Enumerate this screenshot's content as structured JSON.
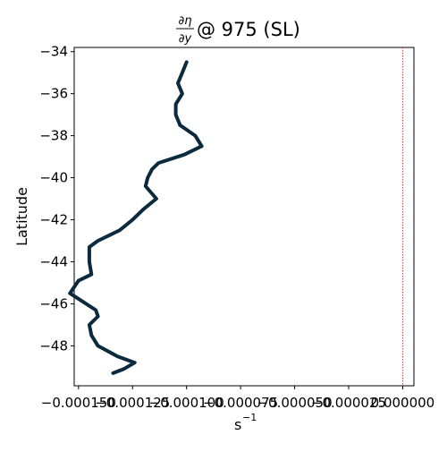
{
  "chart_data": {
    "type": "line",
    "title_html_parts": {
      "partial_num": "∂η",
      "partial_den": "∂y",
      "rest": " @ 975 (SL)"
    },
    "xlabel_base": "s",
    "xlabel_exp": "−1",
    "ylabel": "Latitude",
    "xlim": [
      -0.000152,
      5.2e-06
    ],
    "ylim": [
      -49.9,
      -33.8
    ],
    "x_ticks": [
      {
        "value": -0.00015,
        "label": "−0.000150"
      },
      {
        "value": -0.000125,
        "label": "−0.000125"
      },
      {
        "value": -0.0001,
        "label": "−0.000100"
      },
      {
        "value": -7.5e-05,
        "label": "−0.000075"
      },
      {
        "value": -5e-05,
        "label": "−0.000050"
      },
      {
        "value": -2.5e-05,
        "label": "−0.000025"
      },
      {
        "value": 0.0,
        "label": "0.000000"
      }
    ],
    "y_ticks": [
      {
        "value": -34,
        "label": "−34"
      },
      {
        "value": -36,
        "label": "−36"
      },
      {
        "value": -38,
        "label": "−38"
      },
      {
        "value": -40,
        "label": "−40"
      },
      {
        "value": -42,
        "label": "−42"
      },
      {
        "value": -44,
        "label": "−44"
      },
      {
        "value": -46,
        "label": "−46"
      },
      {
        "value": -48,
        "label": "−48"
      }
    ],
    "zero_line": {
      "x": 0.0,
      "color": "#d62728",
      "style": "dotted"
    },
    "series": [
      {
        "color": "#0b2a3e",
        "points": [
          {
            "x": -0.0001,
            "y": -34.5
          },
          {
            "x": -0.000102,
            "y": -35.0
          },
          {
            "x": -0.000104,
            "y": -35.5
          },
          {
            "x": -0.000102,
            "y": -36.0
          },
          {
            "x": -0.000105,
            "y": -36.5
          },
          {
            "x": -0.000105,
            "y": -37.0
          },
          {
            "x": -0.000103,
            "y": -37.5
          },
          {
            "x": -9.6e-05,
            "y": -38.0
          },
          {
            "x": -9.3e-05,
            "y": -38.5
          },
          {
            "x": -0.000101,
            "y": -38.9
          },
          {
            "x": -0.000113,
            "y": -39.3
          },
          {
            "x": -0.000116,
            "y": -39.6
          },
          {
            "x": -0.000118,
            "y": -40.0
          },
          {
            "x": -0.000119,
            "y": -40.4
          },
          {
            "x": -0.000114,
            "y": -41.0
          },
          {
            "x": -0.00012,
            "y": -41.5
          },
          {
            "x": -0.000125,
            "y": -42.0
          },
          {
            "x": -0.000131,
            "y": -42.5
          },
          {
            "x": -0.000141,
            "y": -43.0
          },
          {
            "x": -0.000145,
            "y": -43.3
          },
          {
            "x": -0.000145,
            "y": -44.0
          },
          {
            "x": -0.000144,
            "y": -44.6
          },
          {
            "x": -0.00015,
            "y": -44.9
          },
          {
            "x": -0.000154,
            "y": -45.5
          },
          {
            "x": -0.000148,
            "y": -45.9
          },
          {
            "x": -0.000142,
            "y": -46.3
          },
          {
            "x": -0.000141,
            "y": -46.6
          },
          {
            "x": -0.000145,
            "y": -47.0
          },
          {
            "x": -0.000144,
            "y": -47.5
          },
          {
            "x": -0.000141,
            "y": -48.0
          },
          {
            "x": -0.000132,
            "y": -48.5
          },
          {
            "x": -0.000124,
            "y": -48.8
          },
          {
            "x": -0.000129,
            "y": -49.1
          },
          {
            "x": -0.000134,
            "y": -49.3
          }
        ]
      }
    ]
  }
}
